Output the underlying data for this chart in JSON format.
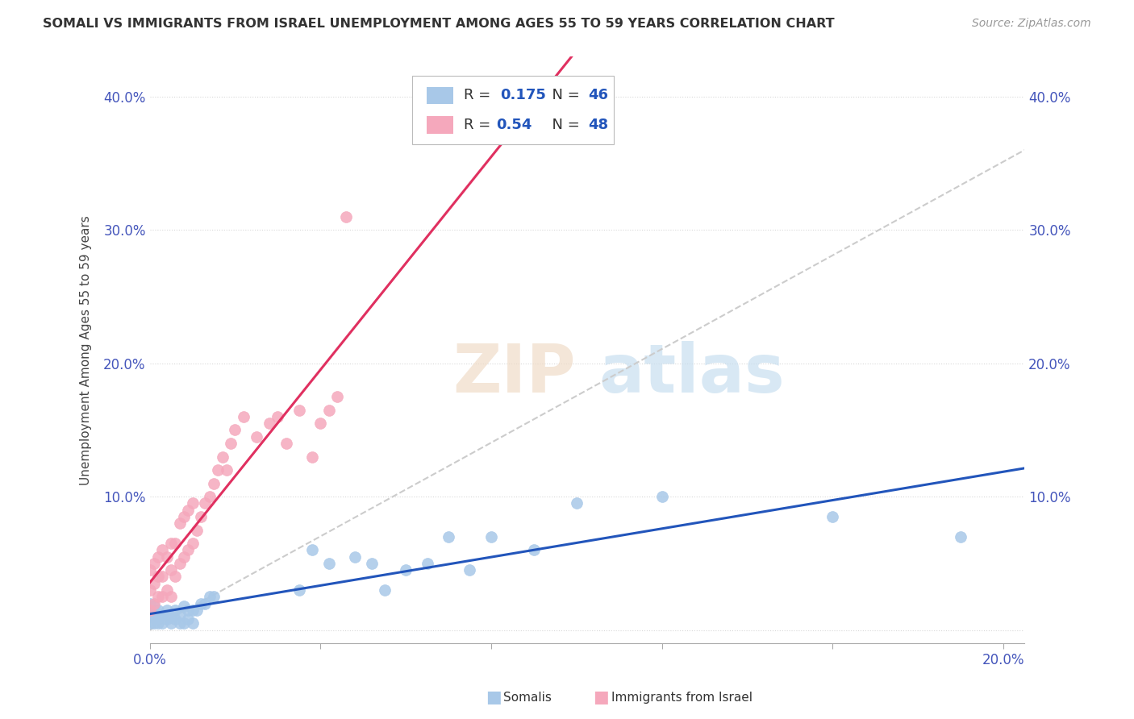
{
  "title": "SOMALI VS IMMIGRANTS FROM ISRAEL UNEMPLOYMENT AMONG AGES 55 TO 59 YEARS CORRELATION CHART",
  "source": "Source: ZipAtlas.com",
  "ylabel": "Unemployment Among Ages 55 to 59 years",
  "xlim": [
    0.0,
    0.205
  ],
  "ylim": [
    -0.01,
    0.43
  ],
  "somali_R": 0.175,
  "somali_N": 46,
  "israel_R": 0.54,
  "israel_N": 48,
  "somali_color": "#a8c8e8",
  "israel_color": "#f5a8bc",
  "somali_line_color": "#2255bb",
  "israel_line_color": "#e03060",
  "legend_label_somali": "Somalis",
  "legend_label_israel": "Immigrants from Israel",
  "somali_x": [
    0.0,
    0.0,
    0.0,
    0.001,
    0.001,
    0.001,
    0.002,
    0.002,
    0.002,
    0.003,
    0.003,
    0.004,
    0.004,
    0.005,
    0.005,
    0.006,
    0.006,
    0.007,
    0.007,
    0.008,
    0.008,
    0.009,
    0.009,
    0.01,
    0.01,
    0.011,
    0.012,
    0.013,
    0.014,
    0.015,
    0.035,
    0.038,
    0.042,
    0.048,
    0.052,
    0.055,
    0.06,
    0.065,
    0.07,
    0.075,
    0.08,
    0.09,
    0.1,
    0.12,
    0.16,
    0.19
  ],
  "somali_y": [
    0.005,
    0.01,
    0.02,
    0.005,
    0.012,
    0.018,
    0.005,
    0.01,
    0.015,
    0.005,
    0.012,
    0.008,
    0.015,
    0.005,
    0.01,
    0.008,
    0.015,
    0.005,
    0.012,
    0.005,
    0.018,
    0.008,
    0.015,
    0.005,
    0.015,
    0.015,
    0.02,
    0.02,
    0.025,
    0.025,
    0.03,
    0.06,
    0.05,
    0.055,
    0.05,
    0.03,
    0.045,
    0.05,
    0.07,
    0.045,
    0.07,
    0.06,
    0.095,
    0.1,
    0.085,
    0.07
  ],
  "israel_x": [
    0.0,
    0.0,
    0.0,
    0.001,
    0.001,
    0.001,
    0.002,
    0.002,
    0.002,
    0.003,
    0.003,
    0.003,
    0.004,
    0.004,
    0.005,
    0.005,
    0.005,
    0.006,
    0.006,
    0.007,
    0.007,
    0.008,
    0.008,
    0.009,
    0.009,
    0.01,
    0.01,
    0.011,
    0.012,
    0.013,
    0.014,
    0.015,
    0.016,
    0.017,
    0.018,
    0.019,
    0.02,
    0.022,
    0.025,
    0.028,
    0.03,
    0.032,
    0.035,
    0.038,
    0.04,
    0.042,
    0.044,
    0.046
  ],
  "israel_y": [
    0.015,
    0.03,
    0.045,
    0.02,
    0.035,
    0.05,
    0.025,
    0.04,
    0.055,
    0.025,
    0.04,
    0.06,
    0.03,
    0.055,
    0.025,
    0.045,
    0.065,
    0.04,
    0.065,
    0.05,
    0.08,
    0.055,
    0.085,
    0.06,
    0.09,
    0.065,
    0.095,
    0.075,
    0.085,
    0.095,
    0.1,
    0.11,
    0.12,
    0.13,
    0.12,
    0.14,
    0.15,
    0.16,
    0.145,
    0.155,
    0.16,
    0.14,
    0.165,
    0.13,
    0.155,
    0.165,
    0.175,
    0.31
  ]
}
